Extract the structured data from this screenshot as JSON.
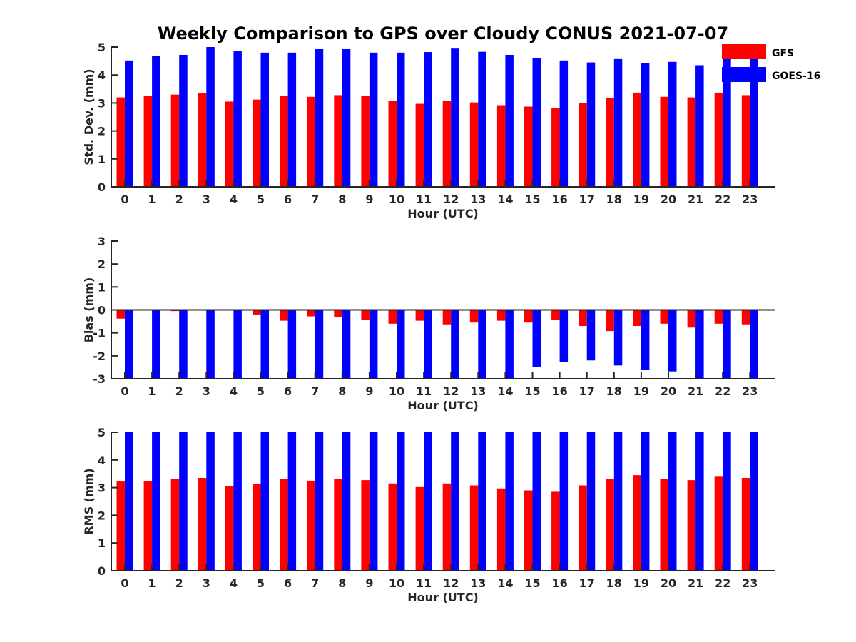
{
  "chart_data": {
    "title": "Weekly Comparison to GPS over Cloudy CONUS 2021-07-07",
    "type": "bar",
    "categories": [
      "0",
      "1",
      "2",
      "3",
      "4",
      "5",
      "6",
      "7",
      "8",
      "9",
      "10",
      "11",
      "12",
      "13",
      "14",
      "15",
      "16",
      "17",
      "18",
      "19",
      "20",
      "21",
      "22",
      "23"
    ],
    "legend": {
      "placement": "top-right",
      "entries": [
        "GFS",
        "GOES-16"
      ]
    },
    "colors": {
      "GFS": "#ff0000",
      "GOES-16": "#0000ff"
    },
    "panels": [
      {
        "ylabel": "Std. Dev. (mm)",
        "xlabel": "Hour (UTC)",
        "ylim": [
          0,
          5
        ],
        "yticks": [
          "0",
          "1",
          "2",
          "3",
          "4",
          "5"
        ],
        "series": [
          {
            "name": "GFS",
            "values": [
              3.2,
              3.25,
              3.3,
              3.35,
              3.05,
              3.12,
              3.25,
              3.22,
              3.28,
              3.25,
              3.08,
              2.97,
              3.07,
              3.02,
              2.92,
              2.87,
              2.82,
              3.0,
              3.18,
              3.37,
              3.22,
              3.2,
              3.37,
              3.28
            ]
          },
          {
            "name": "GOES-16",
            "values": [
              4.52,
              4.68,
              4.72,
              5.0,
              4.85,
              4.8,
              4.8,
              4.93,
              4.93,
              4.8,
              4.8,
              4.82,
              4.97,
              4.83,
              4.72,
              4.6,
              4.52,
              4.45,
              4.57,
              4.42,
              4.47,
              4.35,
              4.58,
              4.7
            ]
          }
        ]
      },
      {
        "ylabel": "Bias (mm)",
        "xlabel": "Hour (UTC)",
        "ylim": [
          -3,
          3
        ],
        "yticks": [
          "-3",
          "-2",
          "-1",
          "0",
          "1",
          "2",
          "3"
        ],
        "series": [
          {
            "name": "GFS",
            "values": [
              -0.38,
              0.02,
              -0.05,
              0.0,
              0.02,
              -0.2,
              -0.47,
              -0.28,
              -0.32,
              -0.45,
              -0.6,
              -0.47,
              -0.63,
              -0.55,
              -0.47,
              -0.55,
              -0.45,
              -0.7,
              -0.92,
              -0.7,
              -0.6,
              -0.77,
              -0.6,
              -0.63
            ]
          },
          {
            "name": "GOES-16",
            "values": [
              -3.0,
              -3.0,
              -3.0,
              -3.0,
              -3.0,
              -3.0,
              -3.0,
              -3.0,
              -3.0,
              -3.0,
              -3.0,
              -3.0,
              -3.0,
              -3.0,
              -3.0,
              -2.47,
              -2.28,
              -2.2,
              -2.42,
              -2.62,
              -2.68,
              -3.0,
              -3.0,
              -3.0
            ]
          }
        ]
      },
      {
        "ylabel": "RMS (mm)",
        "xlabel": "Hour (UTC)",
        "ylim": [
          0,
          5
        ],
        "yticks": [
          "0",
          "1",
          "2",
          "3",
          "4",
          "5"
        ],
        "series": [
          {
            "name": "GFS",
            "values": [
              3.22,
              3.23,
              3.3,
              3.35,
              3.05,
              3.12,
              3.3,
              3.25,
              3.3,
              3.27,
              3.15,
              3.02,
              3.15,
              3.08,
              2.97,
              2.9,
              2.85,
              3.08,
              3.32,
              3.45,
              3.3,
              3.27,
              3.42,
              3.35
            ]
          },
          {
            "name": "GOES-16",
            "values": [
              5,
              5,
              5,
              5,
              5,
              5,
              5,
              5,
              5,
              5,
              5,
              5,
              5,
              5,
              5,
              5,
              5,
              5,
              5,
              5,
              5,
              5,
              5,
              5
            ]
          }
        ]
      }
    ]
  }
}
